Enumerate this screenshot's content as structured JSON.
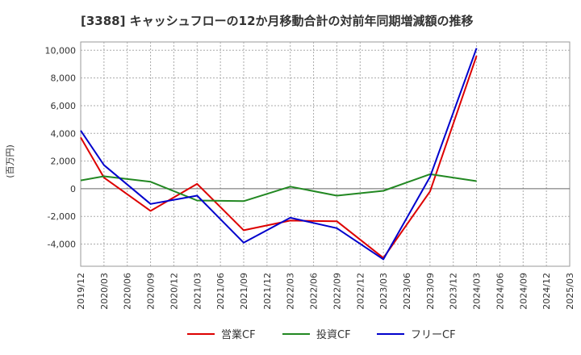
{
  "chart_data": {
    "type": "line",
    "title": "[3388]  キャッシュフローの12か月移動合計の対前年同期増減額の推移",
    "ylabel": "(百万円)",
    "xlabel": "",
    "ylim": [
      -5600,
      10600
    ],
    "yticks": [
      -4000,
      -2000,
      0,
      2000,
      4000,
      6000,
      8000,
      10000
    ],
    "ytick_labels": [
      "-4,000",
      "-2,000",
      "0",
      "2,000",
      "4,000",
      "6,000",
      "8,000",
      "10,000"
    ],
    "categories": [
      "2019/12",
      "2020/03",
      "2020/06",
      "2020/09",
      "2020/12",
      "2021/03",
      "2021/06",
      "2021/09",
      "2021/12",
      "2022/03",
      "2022/06",
      "2022/09",
      "2022/12",
      "2023/03",
      "2023/06",
      "2023/09",
      "2023/12",
      "2024/03",
      "2024/06",
      "2024/09",
      "2024/12",
      "2025/03"
    ],
    "grid": true,
    "legend_position": "bottom",
    "series": [
      {
        "name": "営業CF",
        "color": "#dd0000",
        "values": [
          3700,
          800,
          null,
          -1600,
          null,
          350,
          null,
          -3000,
          null,
          -2300,
          null,
          -2350,
          null,
          -5000,
          null,
          -200,
          null,
          9600,
          null,
          null,
          null,
          null
        ]
      },
      {
        "name": "投資CF",
        "color": "#228822",
        "values": [
          600,
          900,
          null,
          500,
          null,
          -850,
          null,
          -900,
          null,
          150,
          null,
          -500,
          null,
          -150,
          null,
          1050,
          null,
          550,
          null,
          null,
          null,
          null
        ]
      },
      {
        "name": "フリーCF",
        "color": "#0000cc",
        "values": [
          4200,
          1700,
          null,
          -1100,
          null,
          -500,
          null,
          -3900,
          null,
          -2100,
          null,
          -2850,
          null,
          -5100,
          null,
          850,
          null,
          10150,
          null,
          null,
          null,
          null
        ]
      }
    ]
  }
}
